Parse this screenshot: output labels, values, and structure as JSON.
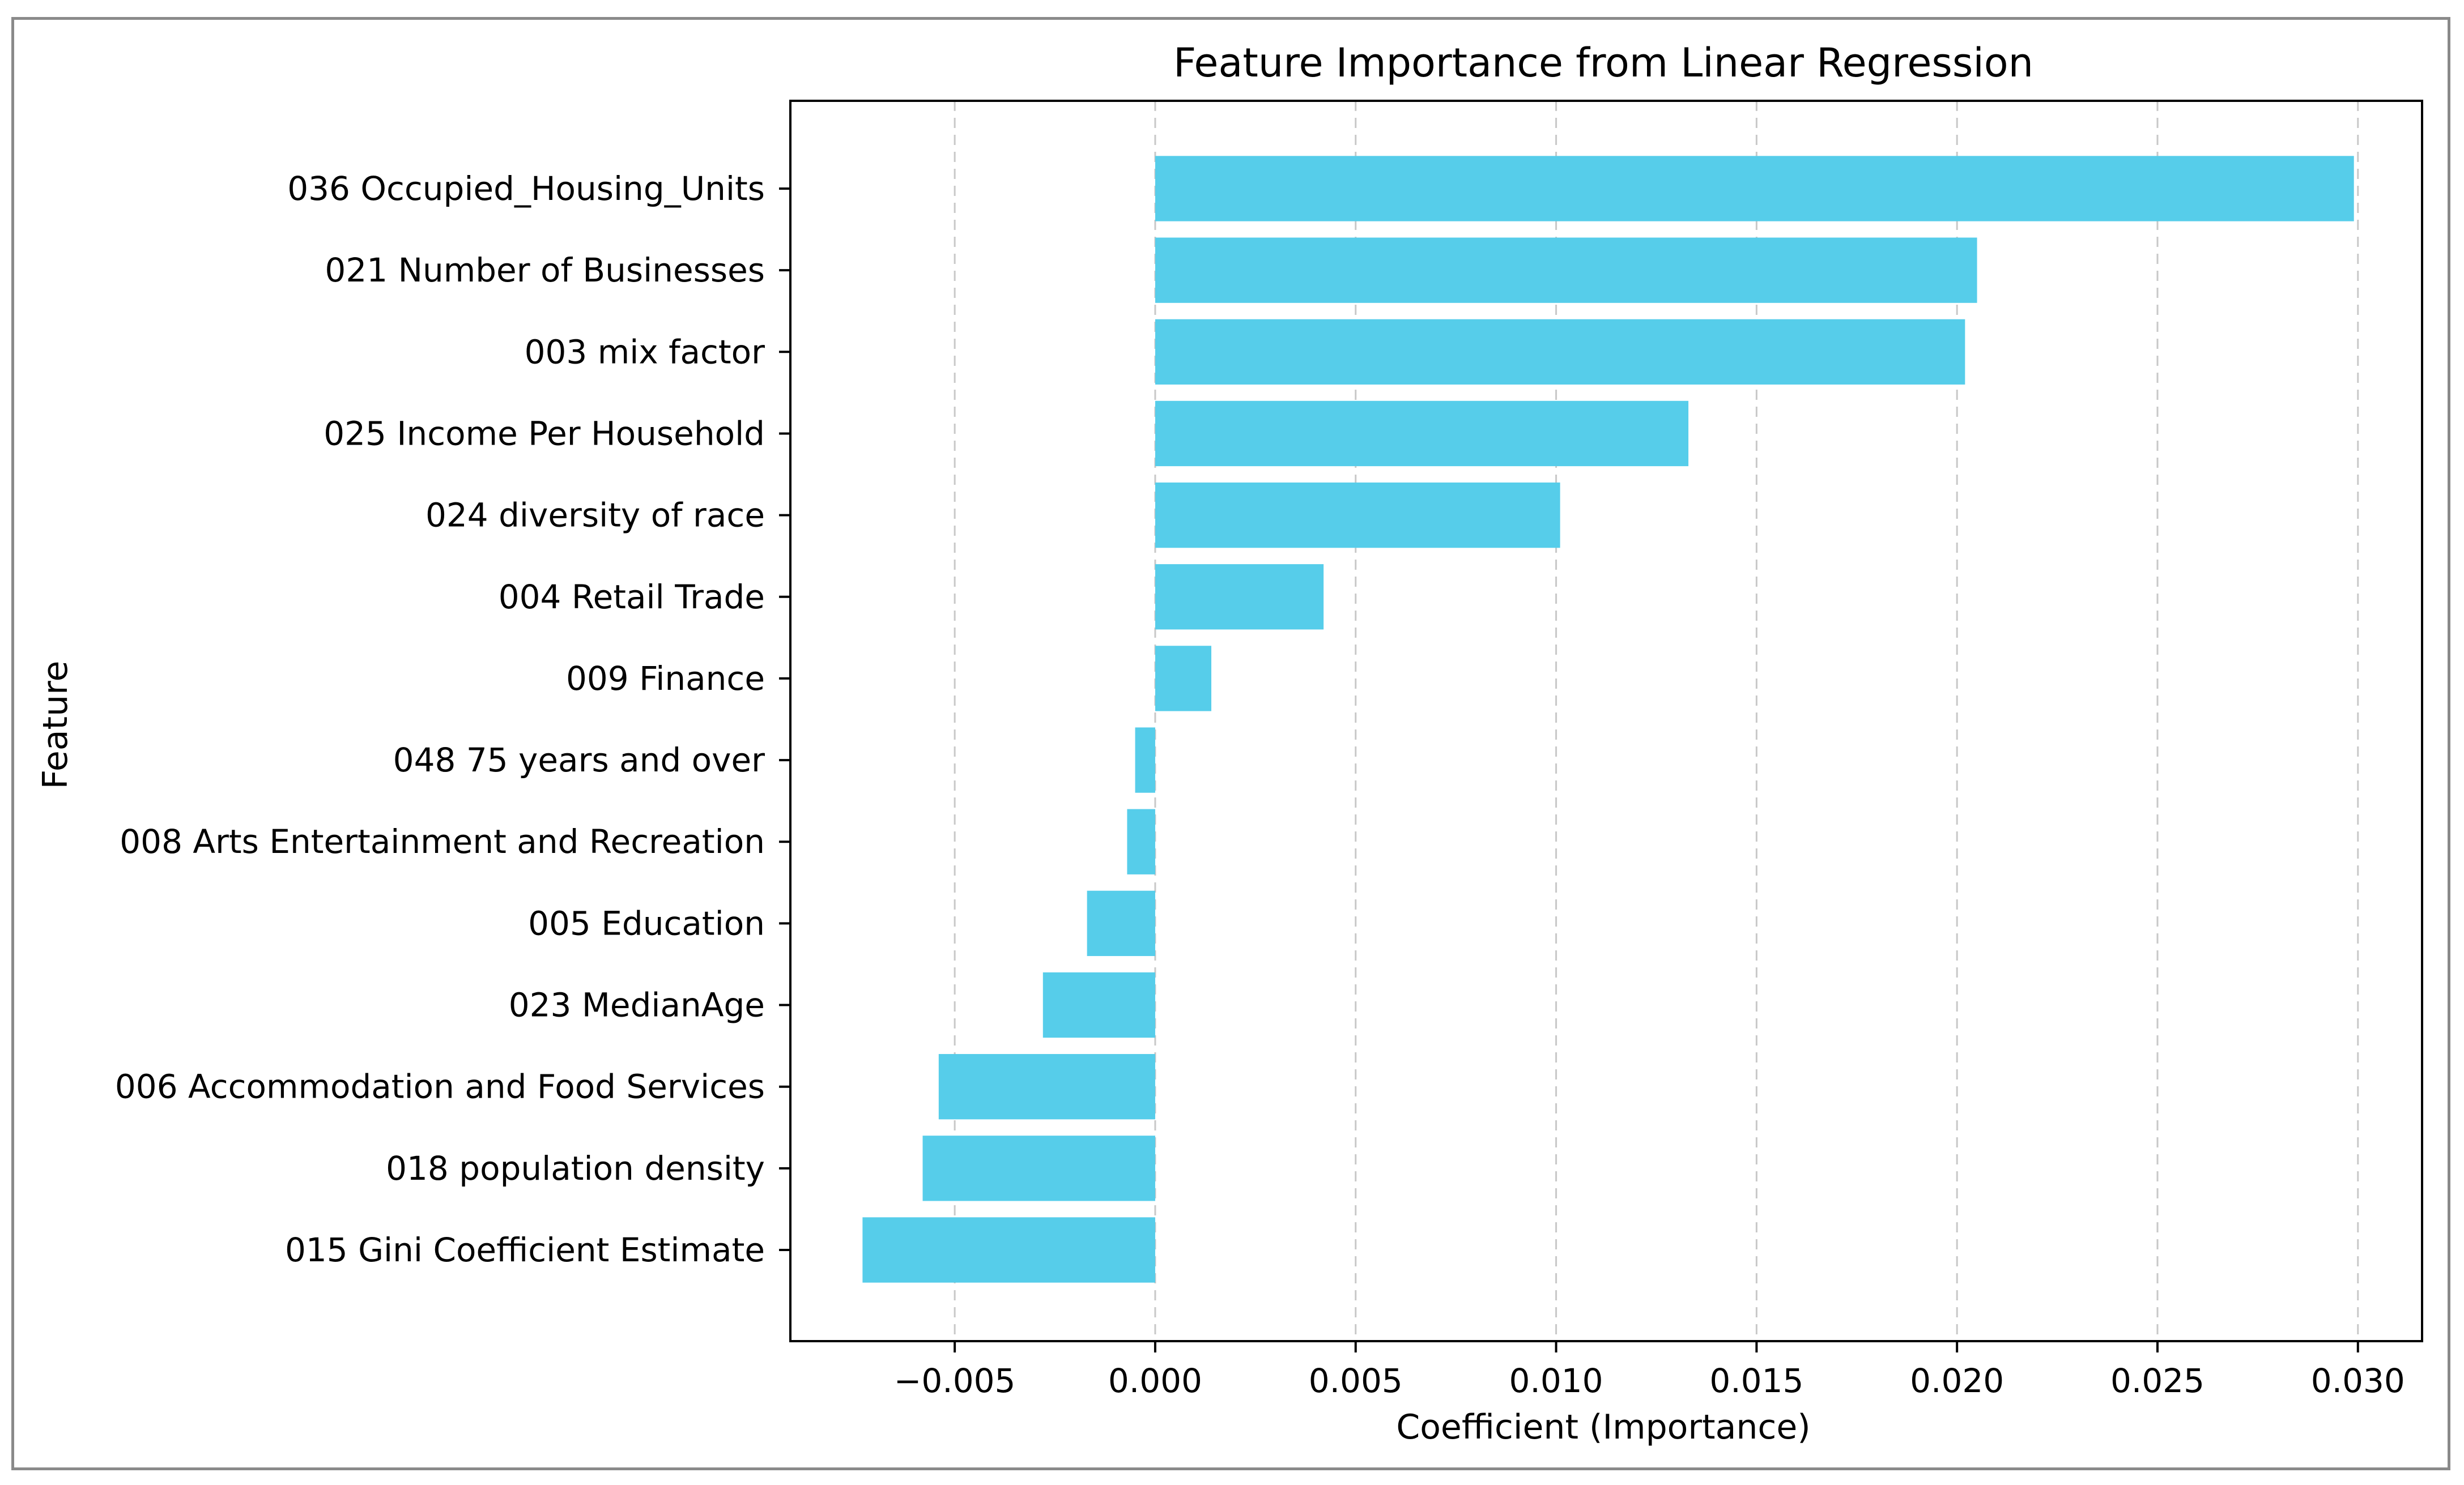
{
  "chart_data": {
    "type": "bar",
    "orientation": "horizontal",
    "title": "Feature Importance from Linear Regression",
    "xlabel": "Coefficient (Importance)",
    "ylabel": "Feature",
    "categories": [
      "036 Occupied_Housing_Units",
      "021 Number of Businesses",
      "003 mix factor",
      "025 Income Per Household",
      "024 diversity of race",
      "004 Retail Trade",
      "009 Finance",
      "048 75 years and over",
      "008 Arts Entertainment and Recreation",
      "005 Education",
      "023 MedianAge",
      "006 Accommodation and Food Services",
      "018 population density",
      "015 Gini Coefficient Estimate"
    ],
    "values": [
      0.0299,
      0.0205,
      0.0202,
      0.0133,
      0.0101,
      0.0042,
      0.0014,
      -0.0005,
      -0.0007,
      -0.0017,
      -0.0028,
      -0.0054,
      -0.0058,
      -0.0073
    ],
    "xlim": [
      -0.0091,
      0.0316
    ],
    "xticks": [
      -0.005,
      0.0,
      0.005,
      0.01,
      0.015,
      0.02,
      0.025,
      0.03
    ],
    "xtick_labels": [
      "−0.005",
      "0.000",
      "0.005",
      "0.010",
      "0.015",
      "0.020",
      "0.025",
      "0.030"
    ],
    "grid": "x-dashed",
    "colors": {
      "bar": "#56cdea",
      "grid": "#c8c8c8",
      "axis": "#000000",
      "frame": "#8a8a8a"
    }
  }
}
